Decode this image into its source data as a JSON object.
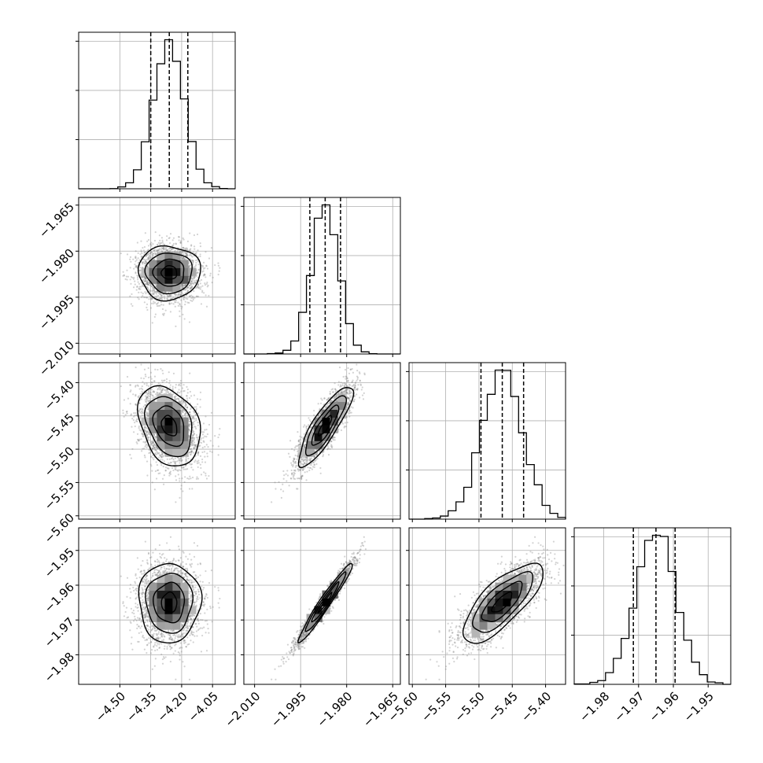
{
  "colors": {
    "axes": "#000000",
    "grid": "#b0b0b0",
    "line": "#000000",
    "scatter": "#808080",
    "density_dark": "#000000",
    "density_light": "#ffffff"
  },
  "chart_data": {
    "type": "corner",
    "title": "",
    "grid": true,
    "axis_labels": [
      "",
      "",
      "",
      ""
    ],
    "parameters": [
      {
        "median": -4.26,
        "q_low": -4.35,
        "q_high": -4.17,
        "sigma": 0.075,
        "range": [
          -4.7,
          -3.94
        ],
        "ticks": [
          -4.5,
          -4.35,
          -4.2,
          -4.05
        ],
        "tick_labels": [
          "−4.50",
          "−4.35",
          "−4.20",
          "−4.05"
        ]
      },
      {
        "median": -1.987,
        "q_low": -1.992,
        "q_high": -1.982,
        "sigma": 0.0044,
        "range": [
          -2.0135,
          -1.9625
        ],
        "ticks": [
          -2.01,
          -1.995,
          -1.98,
          -1.965
        ],
        "tick_labels": [
          "−2.010",
          "−1.995",
          "−1.980",
          "−1.965"
        ]
      },
      {
        "median": -5.465,
        "q_low": -5.497,
        "q_high": -5.433,
        "sigma": 0.03,
        "range": [
          -5.605,
          -5.37
        ],
        "ticks": [
          -5.6,
          -5.55,
          -5.5,
          -5.45,
          -5.4
        ],
        "tick_labels": [
          "−5.60",
          "−5.55",
          "−5.50",
          "−5.45",
          "−5.40"
        ]
      },
      {
        "median": -1.965,
        "q_low": -1.9715,
        "q_high": -1.9595,
        "sigma": 0.0057,
        "range": [
          -1.9885,
          -1.9435
        ],
        "ticks": [
          -1.98,
          -1.97,
          -1.96,
          -1.95
        ],
        "tick_labels": [
          "−1.98",
          "−1.97",
          "−1.96",
          "−1.95"
        ]
      }
    ],
    "correlations": [
      {
        "pair": [
          0,
          1
        ],
        "rho": 0.0
      },
      {
        "pair": [
          0,
          2
        ],
        "rho": -0.3
      },
      {
        "pair": [
          1,
          2
        ],
        "rho": 0.85
      },
      {
        "pair": [
          0,
          3
        ],
        "rho": 0.0
      },
      {
        "pair": [
          1,
          3
        ],
        "rho": 0.97
      },
      {
        "pair": [
          2,
          3
        ],
        "rho": 0.75
      }
    ],
    "contour_levels_sigma": [
      0.5,
      1.0,
      1.5,
      2.0
    ],
    "histogram_bins": 20,
    "n_samples": 5000
  }
}
